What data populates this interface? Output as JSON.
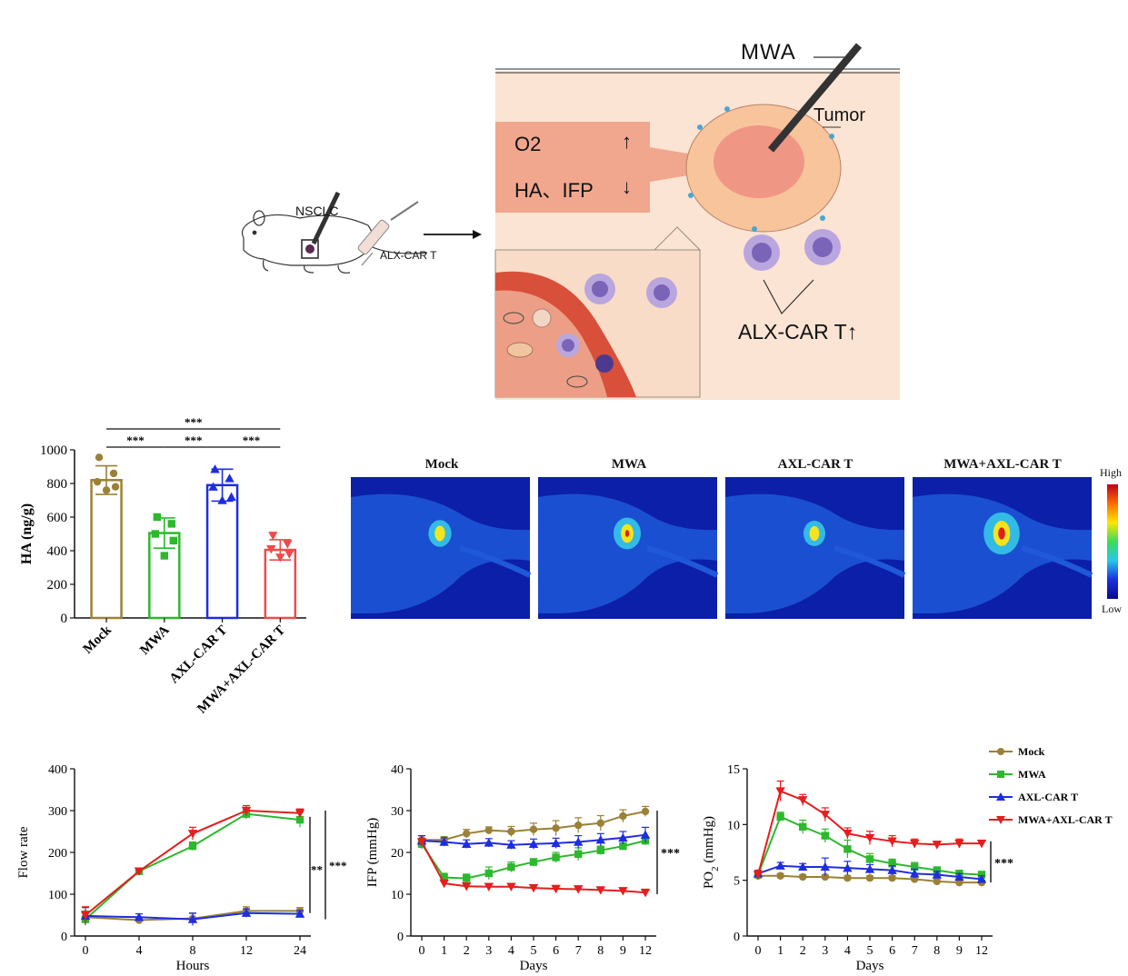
{
  "schematic": {
    "mwa_label": "MWA",
    "tumor_label": "Tumor",
    "o2_label": "O2",
    "ha_ifp_label": "HA、IFP",
    "arrow_up": "↑",
    "arrow_down": "↓",
    "nsclc_label": "NSCLC",
    "injection_label": "ALX-CAR T",
    "car_t_label": "ALX-CAR T↑"
  },
  "heatmap": {
    "panels": [
      "Mock",
      "MWA",
      "AXL-CAR T",
      "MWA+AXL-CAR T"
    ],
    "scale_high": "High",
    "scale_low": "Low",
    "colors": {
      "background": "#0b1fa8",
      "body": "#1f58d8",
      "hot_red": "#e0201a",
      "hot_yellow": "#f4e41e",
      "mid_cyan": "#36c6e8"
    },
    "relative_intensity": [
      0.35,
      0.55,
      0.3,
      0.95
    ]
  },
  "stats": {
    "p3": "***",
    "p2": "**"
  },
  "chart_data": [
    {
      "type": "bar",
      "title": "",
      "xlabel": "",
      "ylabel": "HA (ng/g)",
      "ylim": [
        0,
        1000
      ],
      "yticks": [
        "0",
        "200",
        "400",
        "600",
        "800",
        "1000"
      ],
      "categories": [
        "Mock",
        "MWA",
        "AXL-CAR T",
        "MWA+AXL-CAR T"
      ],
      "values": [
        820,
        505,
        790,
        405
      ],
      "errors": [
        85,
        90,
        95,
        60
      ],
      "colors": [
        "#9b8136",
        "#2db82d",
        "#1f2de0",
        "#ee4b4b"
      ],
      "points": [
        [
          955,
          860,
          810,
          780,
          760
        ],
        [
          600,
          560,
          500,
          460,
          370
        ],
        [
          885,
          830,
          780,
          720,
          700
        ],
        [
          490,
          440,
          410,
          380,
          360
        ]
      ],
      "significance": [
        {
          "from": 0,
          "to": 3,
          "label": "***"
        },
        {
          "from": 0,
          "to": 1,
          "label": "***"
        },
        {
          "from": 1,
          "to": 2,
          "label": "***"
        },
        {
          "from": 2,
          "to": 3,
          "label": "***"
        }
      ]
    },
    {
      "type": "line",
      "xlabel": "Hours",
      "ylabel": "Flow rate",
      "x": [
        0,
        4,
        8,
        12,
        24
      ],
      "xticks": [
        "0",
        "4",
        "8",
        "12",
        "24"
      ],
      "ylim": [
        0,
        400
      ],
      "yticks": [
        "0",
        "100",
        "200",
        "300",
        "400"
      ],
      "series": [
        {
          "name": "Mock",
          "color": "#9b8136",
          "marker": "circle",
          "values": [
            45,
            38,
            42,
            60,
            60
          ],
          "errors": [
            15,
            5,
            12,
            10,
            8
          ]
        },
        {
          "name": "MWA",
          "color": "#2db82d",
          "marker": "square",
          "values": [
            40,
            155,
            215,
            292,
            278
          ],
          "errors": [
            15,
            5,
            10,
            12,
            18
          ]
        },
        {
          "name": "AXL-CAR T",
          "color": "#1f2de0",
          "marker": "triangle-up",
          "values": [
            48,
            45,
            40,
            55,
            53
          ],
          "errors": [
            20,
            8,
            15,
            10,
            8
          ]
        },
        {
          "name": "MWA+AXL-CAR T",
          "color": "#e51e1e",
          "marker": "triangle-down",
          "values": [
            50,
            155,
            245,
            300,
            294
          ],
          "errors": [
            20,
            5,
            15,
            12,
            10
          ]
        }
      ],
      "significance": [
        "**",
        "***"
      ]
    },
    {
      "type": "line",
      "xlabel": "Days",
      "ylabel": "IFP (mmHg)",
      "x": [
        0,
        1,
        2,
        3,
        4,
        5,
        6,
        7,
        8,
        9,
        12
      ],
      "xticks": [
        "0",
        "1",
        "2",
        "3",
        "4",
        "5",
        "6",
        "7",
        "8",
        "9",
        "12"
      ],
      "ylim": [
        0,
        40
      ],
      "yticks": [
        "0",
        "10",
        "20",
        "30",
        "40"
      ],
      "series": [
        {
          "name": "Mock",
          "color": "#9b8136",
          "marker": "circle",
          "values": [
            23,
            23,
            24.5,
            25.3,
            25,
            25.5,
            25.8,
            26.5,
            27,
            28.7,
            29.8
          ],
          "errors": [
            1,
            0.8,
            1,
            0.8,
            1.2,
            1.5,
            1.8,
            1.8,
            1.8,
            1.5,
            1.2
          ]
        },
        {
          "name": "MWA",
          "color": "#2db82d",
          "marker": "square",
          "values": [
            22,
            14,
            13.8,
            15,
            16.5,
            17.7,
            18.8,
            19.6,
            20.5,
            21.5,
            22.8
          ],
          "errors": [
            1.2,
            1,
            1,
            1.5,
            1.2,
            0.8,
            1.2,
            1.5,
            1,
            0.8,
            1
          ]
        },
        {
          "name": "AXL-CAR T",
          "color": "#1f2de0",
          "marker": "triangle-up",
          "values": [
            22.8,
            22.5,
            22,
            22.3,
            21.8,
            22,
            22.2,
            22.5,
            23,
            23.5,
            24.2
          ],
          "errors": [
            1.2,
            1,
            1,
            1,
            1,
            1.2,
            1.2,
            1.5,
            1.5,
            1.5,
            1.8
          ]
        },
        {
          "name": "MWA+AXL-CAR T",
          "color": "#e51e1e",
          "marker": "triangle-down",
          "values": [
            22.5,
            12.6,
            11.9,
            11.8,
            11.8,
            11.5,
            11.3,
            11.2,
            11.0,
            10.8,
            10.4
          ],
          "errors": [
            0.8,
            0.8,
            0.8,
            0.6,
            0.6,
            0.6,
            0.8,
            0.8,
            0.6,
            0.6,
            0.8
          ]
        }
      ],
      "significance": [
        "***"
      ]
    },
    {
      "type": "line",
      "xlabel": "Days",
      "ylabel": "PO",
      "ylabel_sub": "2",
      "ylabel_rest": " (mmHg)",
      "x": [
        0,
        1,
        2,
        3,
        4,
        5,
        6,
        7,
        8,
        9,
        12
      ],
      "xticks": [
        "0",
        "1",
        "2",
        "3",
        "4",
        "5",
        "6",
        "7",
        "8",
        "9",
        "12"
      ],
      "ylim": [
        0,
        15
      ],
      "yticks": [
        "0",
        "5",
        "10",
        "15"
      ],
      "series": [
        {
          "name": "Mock",
          "color": "#9b8136",
          "marker": "circle",
          "values": [
            5.4,
            5.4,
            5.3,
            5.3,
            5.2,
            5.2,
            5.2,
            5.1,
            4.9,
            4.8,
            4.8
          ],
          "errors": [
            0.2,
            0.2,
            0.2,
            0.2,
            0.2,
            0.2,
            0.2,
            0.2,
            0.2,
            0.2,
            0.2
          ]
        },
        {
          "name": "MWA",
          "color": "#2db82d",
          "marker": "square",
          "values": [
            5.5,
            10.7,
            9.8,
            9.0,
            7.8,
            6.9,
            6.5,
            6.2,
            5.9,
            5.6,
            5.5
          ],
          "errors": [
            0.4,
            0.4,
            0.6,
            0.6,
            0.8,
            0.5,
            0.4,
            0.4,
            0.3,
            0.3,
            0.3
          ]
        },
        {
          "name": "AXL-CAR T",
          "color": "#1f2de0",
          "marker": "triangle-up",
          "values": [
            5.6,
            6.3,
            6.2,
            6.2,
            6.1,
            6.0,
            5.9,
            5.6,
            5.5,
            5.3,
            5.1
          ],
          "errors": [
            0.3,
            0.3,
            0.3,
            0.8,
            0.6,
            0.4,
            0.4,
            0.4,
            0.3,
            0.3,
            0.3
          ]
        },
        {
          "name": "MWA+AXL-CAR T",
          "color": "#e51e1e",
          "marker": "triangle-down",
          "values": [
            5.5,
            13.0,
            12.2,
            10.9,
            9.2,
            8.8,
            8.5,
            8.3,
            8.2,
            8.3,
            8.3
          ],
          "errors": [
            0.4,
            0.9,
            0.5,
            0.6,
            0.5,
            0.6,
            0.5,
            0.4,
            0.3,
            0.4,
            0.3
          ]
        }
      ],
      "significance": [
        "***"
      ]
    }
  ]
}
